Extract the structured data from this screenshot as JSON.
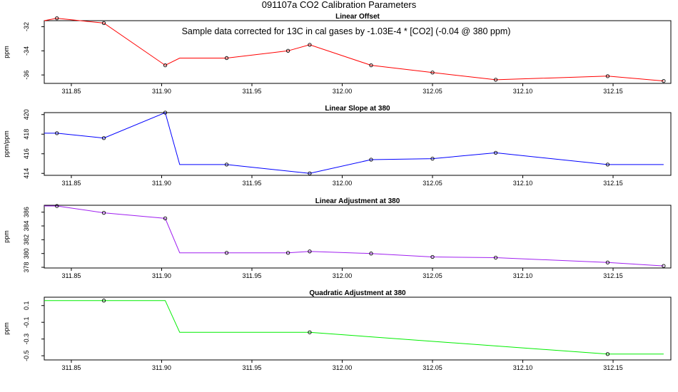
{
  "figure_title": "091107a   CO2 Calibration Parameters",
  "annotation": "Sample data corrected for 13C in cal gases by -1.03E-4 * [CO2] (-0.04 @ 380 ppm)",
  "chart_data": [
    {
      "type": "line",
      "title": "Linear Offset",
      "ylabel": "ppm",
      "xlabel": "",
      "xlim": [
        311.835,
        312.182
      ],
      "ylim": [
        -36.7,
        -31.5
      ],
      "xticks": [
        311.85,
        311.9,
        311.95,
        312.0,
        312.05,
        312.1,
        312.15
      ],
      "xtick_labels": [
        "311.85",
        "311.90",
        "311.95",
        "312.00",
        "312.05",
        "312.10",
        "312.15"
      ],
      "yticks": [
        -32,
        -34,
        -36
      ],
      "ytick_labels": [
        "-32",
        "-34",
        "-36"
      ],
      "color": "#ff0000",
      "line": {
        "x": [
          311.835,
          311.842,
          311.868,
          311.902,
          311.91,
          311.936,
          311.97,
          311.982,
          312.016,
          312.05,
          312.085,
          312.147,
          312.178
        ],
        "y": [
          -31.5,
          -31.3,
          -31.7,
          -35.2,
          -34.6,
          -34.6,
          -34.0,
          -33.5,
          -35.2,
          -35.8,
          -36.4,
          -36.1,
          -36.5
        ]
      },
      "points": {
        "x": [
          311.842,
          311.868,
          311.902,
          311.936,
          311.97,
          311.982,
          312.016,
          312.05,
          312.085,
          312.147,
          312.178
        ],
        "y": [
          -31.3,
          -31.7,
          -35.2,
          -34.6,
          -34.0,
          -33.5,
          -35.2,
          -35.8,
          -36.4,
          -36.1,
          -36.5
        ]
      }
    },
    {
      "type": "line",
      "title": "Linear Slope at 380",
      "ylabel": "ppm/ppm",
      "xlabel": "",
      "xlim": [
        311.835,
        312.182
      ],
      "ylim": [
        413.8,
        420.2
      ],
      "xticks": [
        311.85,
        311.9,
        311.95,
        312.0,
        312.05,
        312.1,
        312.15
      ],
      "xtick_labels": [
        "311.85",
        "311.90",
        "311.95",
        "312.00",
        "312.05",
        "312.10",
        "312.15"
      ],
      "yticks": [
        414,
        416,
        418,
        420
      ],
      "ytick_labels": [
        "414",
        "416",
        "418",
        "420"
      ],
      "color": "#0000ff",
      "line": {
        "x": [
          311.835,
          311.842,
          311.868,
          311.902,
          311.91,
          311.936,
          311.982,
          312.016,
          312.05,
          312.085,
          312.147,
          312.178
        ],
        "y": [
          418.1,
          418.1,
          417.6,
          420.2,
          414.9,
          414.9,
          414.0,
          415.4,
          415.5,
          416.1,
          414.9,
          414.9
        ]
      },
      "points": {
        "x": [
          311.842,
          311.868,
          311.902,
          311.936,
          311.982,
          312.016,
          312.05,
          312.085,
          312.147
        ],
        "y": [
          418.1,
          417.6,
          420.2,
          414.9,
          414.0,
          415.4,
          415.5,
          416.1,
          414.9
        ]
      }
    },
    {
      "type": "line",
      "title": "Linear Adjustment at 380",
      "ylabel": "ppm",
      "xlabel": "",
      "xlim": [
        311.835,
        312.182
      ],
      "ylim": [
        377.9,
        387.0
      ],
      "xticks": [
        311.85,
        311.9,
        311.95,
        312.0,
        312.05,
        312.1,
        312.15
      ],
      "xtick_labels": [
        "311.85",
        "311.90",
        "311.95",
        "312.00",
        "312.05",
        "312.10",
        "312.15"
      ],
      "yticks": [
        378,
        380,
        382,
        384,
        386
      ],
      "ytick_labels": [
        "378",
        "380",
        "382",
        "384",
        "386"
      ],
      "color": "#a020f0",
      "line": {
        "x": [
          311.835,
          311.842,
          311.868,
          311.902,
          311.91,
          311.936,
          311.97,
          311.982,
          312.016,
          312.05,
          312.085,
          312.147,
          312.178
        ],
        "y": [
          386.9,
          386.9,
          385.9,
          385.1,
          380.1,
          380.1,
          380.1,
          380.3,
          380.0,
          379.5,
          379.4,
          378.7,
          378.2
        ]
      },
      "points": {
        "x": [
          311.842,
          311.868,
          311.902,
          311.936,
          311.97,
          311.982,
          312.016,
          312.05,
          312.085,
          312.147,
          312.178
        ],
        "y": [
          386.9,
          385.9,
          385.1,
          380.1,
          380.1,
          380.3,
          380.0,
          379.5,
          379.4,
          378.7,
          378.2
        ]
      }
    },
    {
      "type": "line",
      "title": "Quadratic Adjustment at 380",
      "ylabel": "ppm",
      "xlabel": "",
      "xlim": [
        311.835,
        312.182
      ],
      "ylim": [
        -0.55,
        0.2
      ],
      "xticks": [
        311.85,
        311.9,
        311.95,
        312.0,
        312.05,
        312.1,
        312.15
      ],
      "xtick_labels": [
        "311.85",
        "311.90",
        "311.95",
        "312.00",
        "312.05",
        "312.10",
        "312.15"
      ],
      "yticks": [
        0.1,
        -0.1,
        -0.3,
        -0.5
      ],
      "ytick_labels": [
        "0.1",
        "-0.1",
        "-0.3",
        "-0.5"
      ],
      "color": "#00ee00",
      "line": {
        "x": [
          311.835,
          311.868,
          311.902,
          311.91,
          311.982,
          312.147,
          312.178
        ],
        "y": [
          0.16,
          0.16,
          0.16,
          -0.22,
          -0.22,
          -0.48,
          -0.48
        ]
      },
      "points": {
        "x": [
          311.868,
          311.982,
          312.147
        ],
        "y": [
          0.16,
          -0.22,
          -0.48
        ]
      }
    }
  ]
}
